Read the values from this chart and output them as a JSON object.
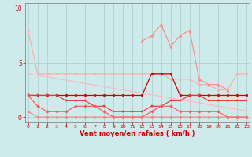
{
  "x": [
    0,
    1,
    2,
    3,
    4,
    5,
    6,
    7,
    8,
    9,
    10,
    11,
    12,
    13,
    14,
    15,
    16,
    17,
    18,
    19,
    20,
    21,
    22,
    23
  ],
  "series": [
    {
      "name": "light_pink_main",
      "color": "#ffaaaa",
      "linewidth": 0.8,
      "marker": "o",
      "markersize": 1.8,
      "y": [
        8.0,
        4.0,
        4.0,
        4.0,
        4.0,
        4.0,
        4.0,
        4.0,
        4.0,
        4.0,
        4.0,
        4.0,
        4.0,
        4.0,
        4.0,
        3.5,
        3.5,
        3.5,
        3.0,
        3.0,
        2.5,
        2.5,
        4.0,
        4.0
      ]
    },
    {
      "name": "diagonal_trend",
      "color": "#ffbbbb",
      "linewidth": 0.9,
      "marker": null,
      "markersize": 0,
      "y": [
        4.0,
        3.85,
        3.7,
        3.55,
        3.4,
        3.25,
        3.1,
        2.95,
        2.8,
        2.65,
        2.5,
        2.35,
        2.2,
        2.05,
        1.9,
        1.75,
        1.6,
        1.45,
        1.3,
        1.15,
        1.0,
        0.85,
        0.7,
        0.55
      ]
    },
    {
      "name": "peak_series",
      "color": "#ff8888",
      "linewidth": 0.8,
      "marker": "^",
      "markersize": 2.5,
      "y": [
        null,
        null,
        null,
        null,
        null,
        null,
        null,
        null,
        null,
        null,
        null,
        null,
        7.0,
        7.5,
        8.5,
        6.5,
        7.5,
        8.0,
        3.5,
        3.0,
        3.0,
        2.5,
        null,
        null
      ]
    },
    {
      "name": "dark_red_flat",
      "color": "#cc0000",
      "linewidth": 0.9,
      "marker": "o",
      "markersize": 2.0,
      "y": [
        2.0,
        2.0,
        2.0,
        2.0,
        2.0,
        2.0,
        2.0,
        2.0,
        2.0,
        2.0,
        2.0,
        2.0,
        2.0,
        4.0,
        4.0,
        4.0,
        2.0,
        2.0,
        2.0,
        2.0,
        2.0,
        2.0,
        2.0,
        2.0
      ]
    },
    {
      "name": "medium_red",
      "color": "#ee3333",
      "linewidth": 0.8,
      "marker": "s",
      "markersize": 1.8,
      "y": [
        2.0,
        2.0,
        2.0,
        2.0,
        1.5,
        1.5,
        1.5,
        1.0,
        1.0,
        0.5,
        0.5,
        0.5,
        0.5,
        1.0,
        1.0,
        1.5,
        1.5,
        2.0,
        2.0,
        1.5,
        1.5,
        1.5,
        1.5,
        1.5
      ]
    },
    {
      "name": "mid_dip",
      "color": "#ff5555",
      "linewidth": 0.8,
      "marker": "D",
      "markersize": 1.8,
      "y": [
        2.0,
        1.0,
        0.5,
        0.5,
        0.5,
        1.0,
        1.0,
        1.0,
        0.5,
        0.0,
        0.0,
        0.0,
        0.0,
        0.5,
        1.0,
        1.0,
        0.5,
        0.5,
        0.5,
        0.5,
        0.5,
        0.0,
        0.0,
        0.0
      ]
    },
    {
      "name": "near_zero",
      "color": "#ff7777",
      "linewidth": 0.7,
      "marker": "o",
      "markersize": 1.5,
      "y": [
        0.5,
        0.0,
        0.0,
        0.0,
        0.0,
        0.0,
        0.0,
        0.0,
        0.0,
        0.0,
        0.0,
        0.0,
        0.0,
        0.0,
        0.0,
        0.0,
        0.0,
        0.0,
        0.0,
        0.0,
        0.0,
        0.0,
        0.0,
        0.0
      ]
    }
  ],
  "xlabel": "Vent moyen/en rafales ( km/h )",
  "xlim": [
    -0.3,
    23.3
  ],
  "ylim": [
    -0.5,
    10.5
  ],
  "yticks": [
    0,
    5,
    10
  ],
  "xticks": [
    0,
    1,
    2,
    3,
    4,
    5,
    6,
    7,
    8,
    9,
    10,
    11,
    12,
    13,
    14,
    15,
    16,
    17,
    18,
    19,
    20,
    21,
    22,
    23
  ],
  "bg_color": "#ceeaea",
  "grid_color": "#aacccc",
  "tick_color": "#cc0000",
  "xlabel_color": "#cc0000",
  "xlabel_fontsize": 6.0,
  "tick_fontsize_x": 4.5,
  "tick_fontsize_y": 5.5
}
